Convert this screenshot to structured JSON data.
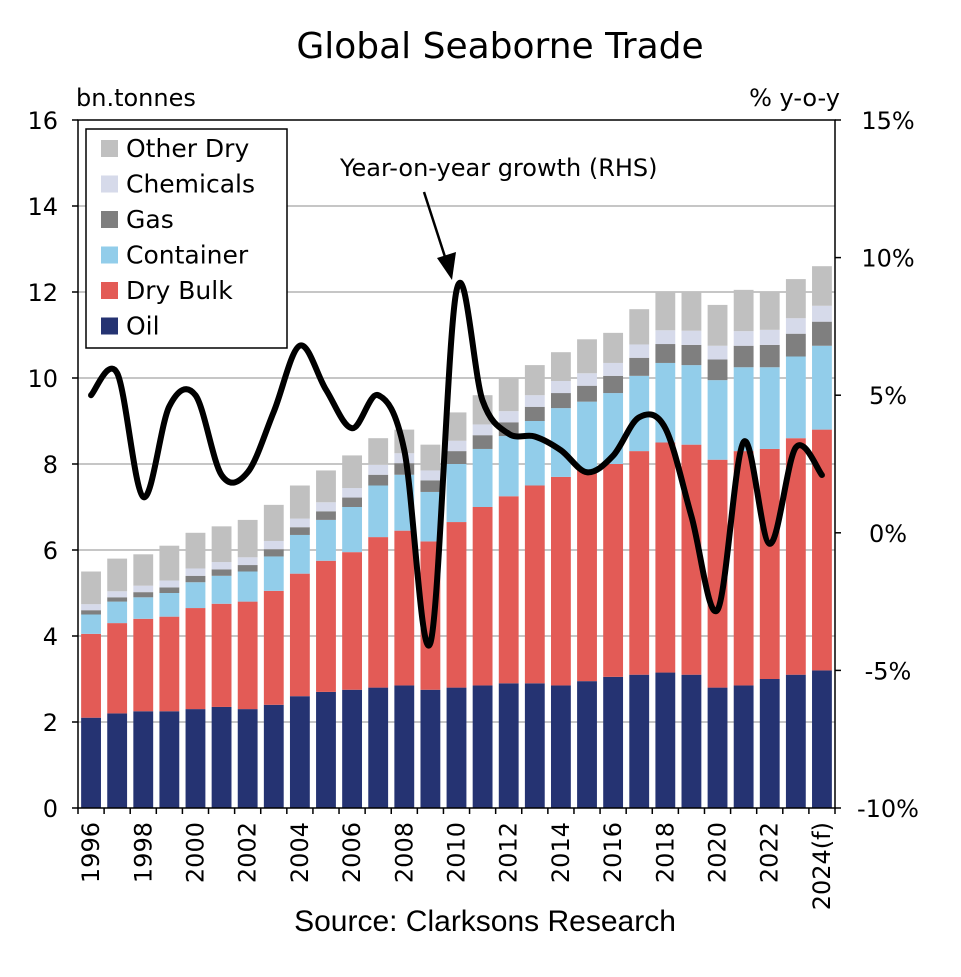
{
  "chart_data": {
    "type": "bar",
    "stacked": true,
    "title": "Global Seaborne Trade",
    "left_axis_unit": "bn.tonnes",
    "right_axis_unit": "% y-o-y",
    "source": "Source: Clarksons Research",
    "ylim_left": [
      0,
      16
    ],
    "yticks_left": [
      "0",
      "2",
      "4",
      "6",
      "8",
      "10",
      "12",
      "14",
      "16"
    ],
    "ylim_right": [
      -10,
      15
    ],
    "yticks_right": [
      "-10%",
      "-5%",
      "0%",
      "5%",
      "10%",
      "15%"
    ],
    "x": [
      "1996",
      "1997",
      "1998",
      "1999",
      "2000",
      "2001",
      "2002",
      "2003",
      "2004",
      "2005",
      "2006",
      "2007",
      "2008",
      "2009",
      "2010",
      "2011",
      "2012",
      "2013",
      "2014",
      "2015",
      "2016",
      "2017",
      "2018",
      "2019",
      "2020",
      "2021",
      "2022",
      "2023",
      "2024(f)"
    ],
    "x_tick_labels": [
      "1996",
      "",
      "1998",
      "",
      "2000",
      "",
      "2002",
      "",
      "2004",
      "",
      "2006",
      "",
      "2008",
      "",
      "2010",
      "",
      "2012",
      "",
      "2014",
      "",
      "2016",
      "",
      "2018",
      "",
      "2020",
      "",
      "2022",
      "",
      "2024(f)"
    ],
    "grid": "horizontal",
    "legend_position": "top-left",
    "series": [
      {
        "name": "Oil",
        "color": "#253372",
        "values": [
          2.1,
          2.2,
          2.25,
          2.25,
          2.3,
          2.35,
          2.3,
          2.4,
          2.6,
          2.7,
          2.75,
          2.8,
          2.85,
          2.75,
          2.8,
          2.85,
          2.9,
          2.9,
          2.85,
          2.95,
          3.05,
          3.1,
          3.15,
          3.1,
          2.8,
          2.85,
          3.0,
          3.1,
          3.2
        ]
      },
      {
        "name": "Dry Bulk",
        "color": "#E35B56",
        "values": [
          1.95,
          2.1,
          2.15,
          2.2,
          2.35,
          2.4,
          2.5,
          2.65,
          2.85,
          3.05,
          3.2,
          3.5,
          3.6,
          3.45,
          3.85,
          4.15,
          4.35,
          4.6,
          4.85,
          4.9,
          4.95,
          5.2,
          5.35,
          5.35,
          5.3,
          5.45,
          5.35,
          5.5,
          5.6
        ]
      },
      {
        "name": "Container",
        "color": "#92CDEA",
        "values": [
          0.45,
          0.5,
          0.5,
          0.55,
          0.6,
          0.65,
          0.7,
          0.8,
          0.9,
          0.95,
          1.05,
          1.2,
          1.3,
          1.15,
          1.35,
          1.35,
          1.4,
          1.5,
          1.6,
          1.6,
          1.65,
          1.75,
          1.85,
          1.85,
          1.85,
          1.95,
          1.9,
          1.9,
          1.95
        ]
      },
      {
        "name": "Gas",
        "color": "#7F7F7F",
        "values": [
          0.1,
          0.1,
          0.12,
          0.13,
          0.15,
          0.15,
          0.15,
          0.17,
          0.18,
          0.2,
          0.22,
          0.25,
          0.27,
          0.27,
          0.3,
          0.32,
          0.32,
          0.33,
          0.35,
          0.37,
          0.4,
          0.42,
          0.44,
          0.47,
          0.48,
          0.5,
          0.52,
          0.53,
          0.56
        ]
      },
      {
        "name": "Chemicals",
        "color": "#D6DAEA",
        "values": [
          0.14,
          0.14,
          0.15,
          0.16,
          0.17,
          0.17,
          0.18,
          0.19,
          0.2,
          0.21,
          0.22,
          0.23,
          0.23,
          0.23,
          0.24,
          0.25,
          0.26,
          0.27,
          0.28,
          0.29,
          0.3,
          0.31,
          0.32,
          0.33,
          0.32,
          0.34,
          0.35,
          0.36,
          0.37
        ]
      },
      {
        "name": "Other Dry",
        "color": "#C0C0C0",
        "values": [
          0.76,
          0.76,
          0.73,
          0.81,
          0.83,
          0.83,
          0.87,
          0.84,
          0.77,
          0.74,
          0.76,
          0.62,
          0.55,
          0.6,
          0.66,
          0.68,
          0.77,
          0.7,
          0.67,
          0.79,
          0.7,
          0.82,
          0.89,
          0.9,
          0.95,
          0.96,
          0.88,
          0.91,
          0.92
        ]
      }
    ],
    "growth_line": {
      "annotation": "Year-on-year growth (RHS)",
      "color": "#000000",
      "values": [
        5.0,
        5.8,
        1.3,
        4.6,
        5.0,
        2.1,
        2.2,
        4.4,
        6.8,
        5.2,
        3.8,
        5.0,
        3.0,
        -4.0,
        8.8,
        4.8,
        3.6,
        3.5,
        3.0,
        2.2,
        2.8,
        4.2,
        3.8,
        0.6,
        -2.8,
        3.3,
        -0.4,
        3.1,
        2.1
      ]
    }
  }
}
